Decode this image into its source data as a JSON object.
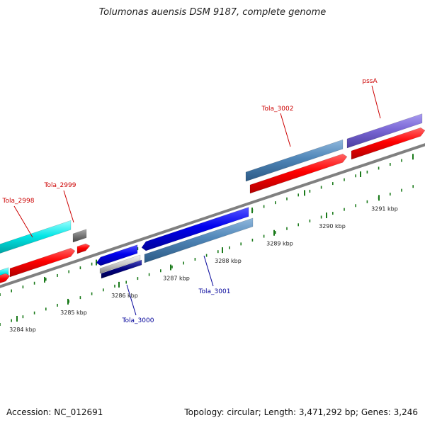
{
  "title": "Tolumonas auensis DSM 9187, complete genome",
  "footer": {
    "accession": "Accession: NC_012691",
    "summary": "Topology: circular; Length: 3,471,292 bp; Genes: 3,246"
  },
  "ticks": [
    {
      "label": "3284 kbp"
    },
    {
      "label": "3285 kbp"
    },
    {
      "label": "3286 kbp"
    },
    {
      "label": "3287 kbp"
    },
    {
      "label": "3288 kbp"
    },
    {
      "label": "3289 kbp"
    },
    {
      "label": "3290 kbp"
    },
    {
      "label": "3291 kbp"
    }
  ],
  "forward_labels": [
    {
      "text": "Tola_2998",
      "color": "#cc0000"
    },
    {
      "text": "Tola_2999",
      "color": "#cc0000"
    },
    {
      "text": "Tola_3002",
      "color": "#cc0000"
    },
    {
      "text": "pssA",
      "color": "#cc0000"
    }
  ],
  "reverse_labels": [
    {
      "text": "Tola_3000",
      "color": "#000099"
    },
    {
      "text": "Tola_3001",
      "color": "#000099"
    }
  ],
  "colors": {
    "backbone": "#808080",
    "cds_forward": "#ff0000",
    "cds_reverse": "#0000ee",
    "feature_cyan": "#00e5e5",
    "feature_steelblue": "#4f86b8",
    "feature_purple": "#7b68d6",
    "feature_gray": "#777777",
    "feature_navy": "#000080",
    "feature_light": "#c8c8c8",
    "tick": "#1a7a1a"
  }
}
